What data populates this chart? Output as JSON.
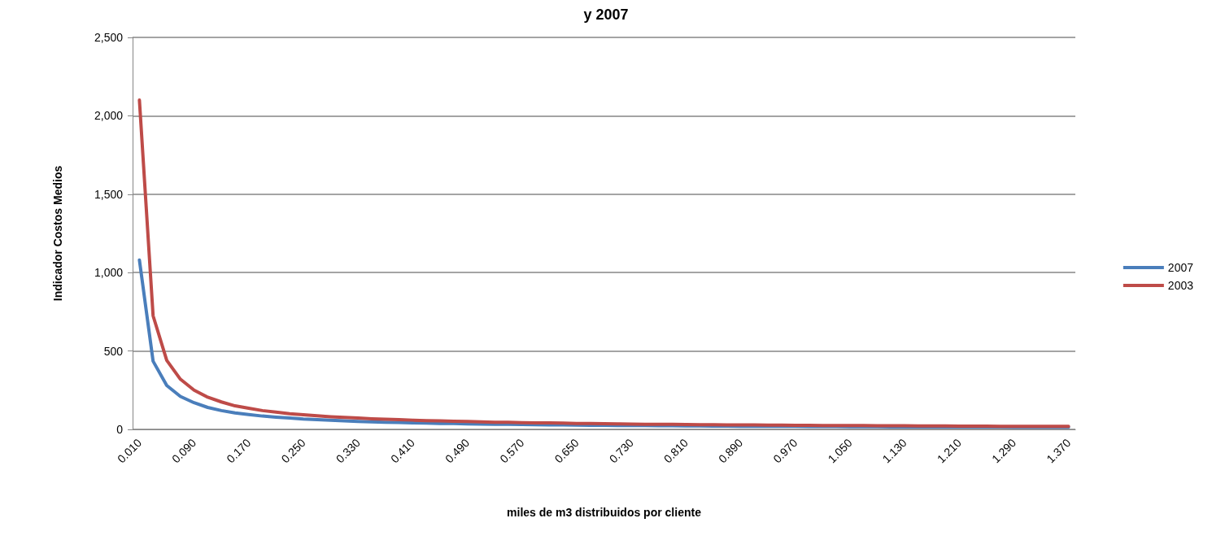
{
  "chart_data": {
    "type": "line",
    "title": "y 2007",
    "xlabel": "miles de m3 distribuidos por cliente",
    "ylabel": "Indicador Costos Medios",
    "categories": [
      "0.010",
      null,
      null,
      null,
      "0.090",
      null,
      null,
      null,
      "0.170",
      null,
      null,
      null,
      "0.250",
      null,
      null,
      null,
      "0.330",
      null,
      null,
      null,
      "0.410",
      null,
      null,
      null,
      "0.490",
      null,
      null,
      null,
      "0.570",
      null,
      null,
      null,
      "0.650",
      null,
      null,
      null,
      "0.730",
      null,
      null,
      null,
      "0.810",
      null,
      null,
      null,
      "0.890",
      null,
      null,
      null,
      "0.970",
      null,
      null,
      null,
      "1.050",
      null,
      null,
      null,
      "1.130",
      null,
      null,
      null,
      "1.210",
      null,
      null,
      null,
      "1.290",
      null,
      null,
      null,
      "1.370"
    ],
    "series": [
      {
        "name": "2007",
        "color": "#4a7ebb",
        "values": [
          1080,
          435,
          280,
          210,
          170,
          140,
          120,
          105,
          95,
          85,
          78,
          72,
          66,
          62,
          58,
          54,
          51,
          48,
          46,
          44,
          42,
          40,
          38,
          37,
          35,
          34,
          33,
          32,
          31,
          30,
          29,
          28,
          27,
          26,
          26,
          25,
          24,
          24,
          23,
          23,
          22,
          22,
          21,
          21,
          20,
          20,
          19,
          19,
          19,
          18,
          18,
          18,
          17,
          17,
          17,
          16,
          16,
          16,
          16,
          15,
          15,
          15,
          15,
          15,
          14,
          14,
          14,
          14,
          14
        ]
      },
      {
        "name": "2003",
        "color": "#be4b48",
        "values": [
          2100,
          725,
          440,
          320,
          250,
          205,
          175,
          150,
          135,
          120,
          110,
          100,
          93,
          87,
          81,
          76,
          72,
          68,
          65,
          62,
          59,
          56,
          54,
          52,
          50,
          48,
          46,
          45,
          43,
          42,
          41,
          40,
          38,
          37,
          36,
          35,
          34,
          33,
          33,
          32,
          31,
          30,
          30,
          29,
          28,
          28,
          27,
          27,
          26,
          26,
          25,
          25,
          24,
          24,
          23,
          23,
          23,
          22,
          22,
          22,
          21,
          21,
          21,
          20,
          20,
          20,
          20,
          19,
          19
        ]
      }
    ],
    "ylim": [
      0,
      2500
    ],
    "yticks": [
      0,
      500,
      {
        "value": 1000,
        "label": "1,000"
      },
      {
        "value": 1500,
        "label": "1,500"
      },
      {
        "value": 2000,
        "label": "2,000"
      },
      {
        "value": 2500,
        "label": "2,500"
      }
    ],
    "grid": "y",
    "legend": "right",
    "marker": "none",
    "line_style": "solid"
  }
}
